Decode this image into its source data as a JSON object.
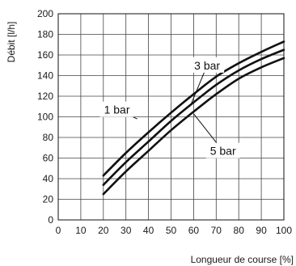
{
  "chart_data": {
    "type": "line",
    "xlabel": "Longueur de course [%]",
    "ylabel": "Débit [l/h]",
    "xlim": [
      0,
      100
    ],
    "ylim": [
      0,
      200
    ],
    "x_ticks": [
      "0",
      "10",
      "20",
      "30",
      "40",
      "50",
      "60",
      "70",
      "80",
      "90",
      "100"
    ],
    "y_ticks": [
      "0",
      "20",
      "40",
      "60",
      "80",
      "100",
      "120",
      "140",
      "160",
      "180",
      "200"
    ],
    "grid": true,
    "series": [
      {
        "name": "1 bar",
        "x": [
          20,
          30,
          40,
          50,
          60,
          70,
          80,
          90,
          100
        ],
        "y": [
          43,
          65,
          85,
          104,
          122,
          139,
          152,
          163,
          173
        ]
      },
      {
        "name": "3 bar",
        "x": [
          20,
          30,
          40,
          50,
          60,
          70,
          80,
          90,
          100
        ],
        "y": [
          34,
          56,
          76,
          96,
          114,
          131,
          145,
          156,
          165
        ]
      },
      {
        "name": "5 bar",
        "x": [
          20,
          30,
          40,
          50,
          60,
          70,
          80,
          90,
          100
        ],
        "y": [
          25,
          47,
          67,
          87,
          105,
          122,
          137,
          148,
          157
        ]
      }
    ],
    "annotations": [
      {
        "text": "1 bar",
        "x": 26,
        "y": 103,
        "series": 0,
        "leader_to": [
          35,
          98
        ]
      },
      {
        "text": "3 bar",
        "x": 66,
        "y": 146,
        "series": 1,
        "leader_to": [
          59,
          113
        ]
      },
      {
        "text": "5 bar",
        "x": 73,
        "y": 63,
        "series": 2,
        "leader_to": [
          60,
          103
        ]
      }
    ],
    "colors": {
      "line": "#111111",
      "grid": "#444444",
      "frame": "#111111"
    }
  }
}
